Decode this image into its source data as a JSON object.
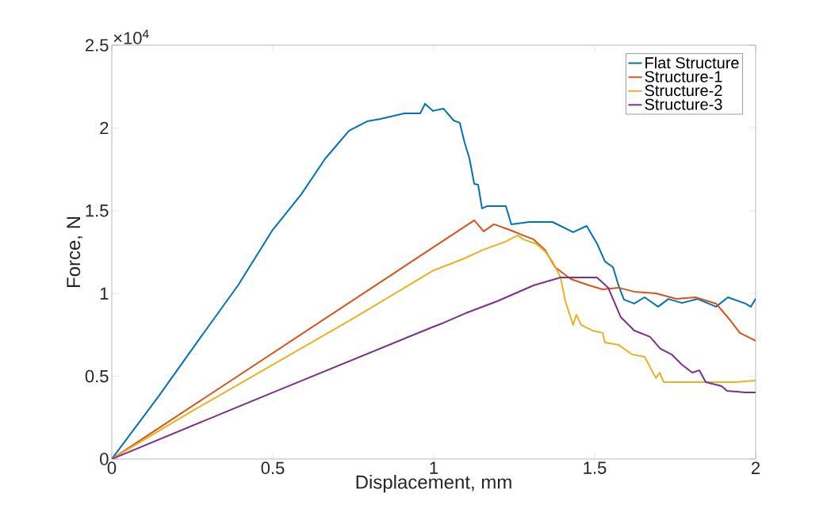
{
  "chart_data": {
    "type": "line",
    "xlabel": "Displacement, mm",
    "ylabel": "Force, N",
    "annotations": [
      "×10$^{4}$"
    ],
    "xlim": [
      0,
      2
    ],
    "ylim": [
      0,
      2.5
    ],
    "xticks": [
      0,
      0.5,
      1,
      1.5,
      2
    ],
    "yticks": [
      0,
      0.5,
      1,
      1.5,
      2,
      2.5
    ],
    "legend": "top right",
    "line_style": "solid",
    "marker": "none",
    "series": [
      {
        "name": "Flat Structure",
        "color": "#0072bd",
        "x": [
          0,
          0.145,
          0.268,
          0.392,
          0.5,
          0.589,
          0.663,
          0.737,
          0.793,
          0.835,
          0.909,
          0.958,
          0.973,
          0.998,
          1.03,
          1.062,
          1.081,
          1.096,
          1.111,
          1.126,
          1.138,
          1.15,
          1.167,
          1.224,
          1.241,
          1.296,
          1.369,
          1.433,
          1.475,
          1.507,
          1.532,
          1.557,
          1.574,
          1.591,
          1.623,
          1.655,
          1.697,
          1.729,
          1.771,
          1.82,
          1.877,
          1.914,
          1.968,
          1.985,
          2.0
        ],
        "values": [
          0,
          0.378,
          0.714,
          1.049,
          1.385,
          1.6,
          1.815,
          1.983,
          2.04,
          2.055,
          2.088,
          2.088,
          2.146,
          2.103,
          2.117,
          2.045,
          2.031,
          1.911,
          1.815,
          1.662,
          1.657,
          1.514,
          1.528,
          1.528,
          1.418,
          1.432,
          1.432,
          1.37,
          1.408,
          1.303,
          1.193,
          1.159,
          1.049,
          0.963,
          0.939,
          0.977,
          0.92,
          0.967,
          0.943,
          0.967,
          0.92,
          0.977,
          0.939,
          0.92,
          0.968
        ]
      },
      {
        "name": "Structure-1",
        "color": "#d95319",
        "x": [
          0,
          1.126,
          1.155,
          1.187,
          1.236,
          1.278,
          1.31,
          1.345,
          1.377,
          1.426,
          1.483,
          1.525,
          1.574,
          1.623,
          1.69,
          1.754,
          1.813,
          1.877,
          1.919,
          1.951,
          2.0
        ],
        "values": [
          0,
          1.442,
          1.375,
          1.418,
          1.384,
          1.351,
          1.327,
          1.265,
          1.159,
          1.087,
          1.049,
          1.025,
          1.035,
          1.011,
          1.001,
          0.967,
          0.977,
          0.939,
          0.843,
          0.762,
          0.714
        ]
      },
      {
        "name": "Structure-2",
        "color": "#edb120",
        "x": [
          0,
          0.25,
          0.5,
          0.75,
          1.0,
          1.089,
          1.155,
          1.222,
          1.261,
          1.278,
          1.32,
          1.345,
          1.369,
          1.394,
          1.409,
          1.433,
          1.443,
          1.458,
          1.493,
          1.525,
          1.532,
          1.574,
          1.616,
          1.655,
          1.69,
          1.702,
          1.714,
          1.813,
          1.936,
          2.0
        ],
        "values": [
          0,
          0.29,
          0.57,
          0.85,
          1.14,
          1.207,
          1.265,
          1.312,
          1.351,
          1.327,
          1.298,
          1.255,
          1.193,
          1.097,
          0.953,
          0.81,
          0.872,
          0.81,
          0.776,
          0.762,
          0.704,
          0.69,
          0.632,
          0.618,
          0.489,
          0.522,
          0.465,
          0.465,
          0.465,
          0.474
        ]
      },
      {
        "name": "Structure-3",
        "color": "#7e2f8e",
        "x": [
          0,
          0.5,
          1.0,
          1.032,
          1.099,
          1.197,
          1.31,
          1.394,
          1.507,
          1.542,
          1.581,
          1.623,
          1.672,
          1.704,
          1.739,
          1.771,
          1.803,
          1.825,
          1.845,
          1.894,
          1.911,
          1.968,
          2.0
        ],
        "values": [
          0,
          0.402,
          0.8,
          0.824,
          0.881,
          0.953,
          1.049,
          1.097,
          1.097,
          1.035,
          0.857,
          0.776,
          0.738,
          0.666,
          0.632,
          0.57,
          0.522,
          0.536,
          0.465,
          0.441,
          0.412,
          0.402,
          0.402
        ]
      }
    ]
  }
}
